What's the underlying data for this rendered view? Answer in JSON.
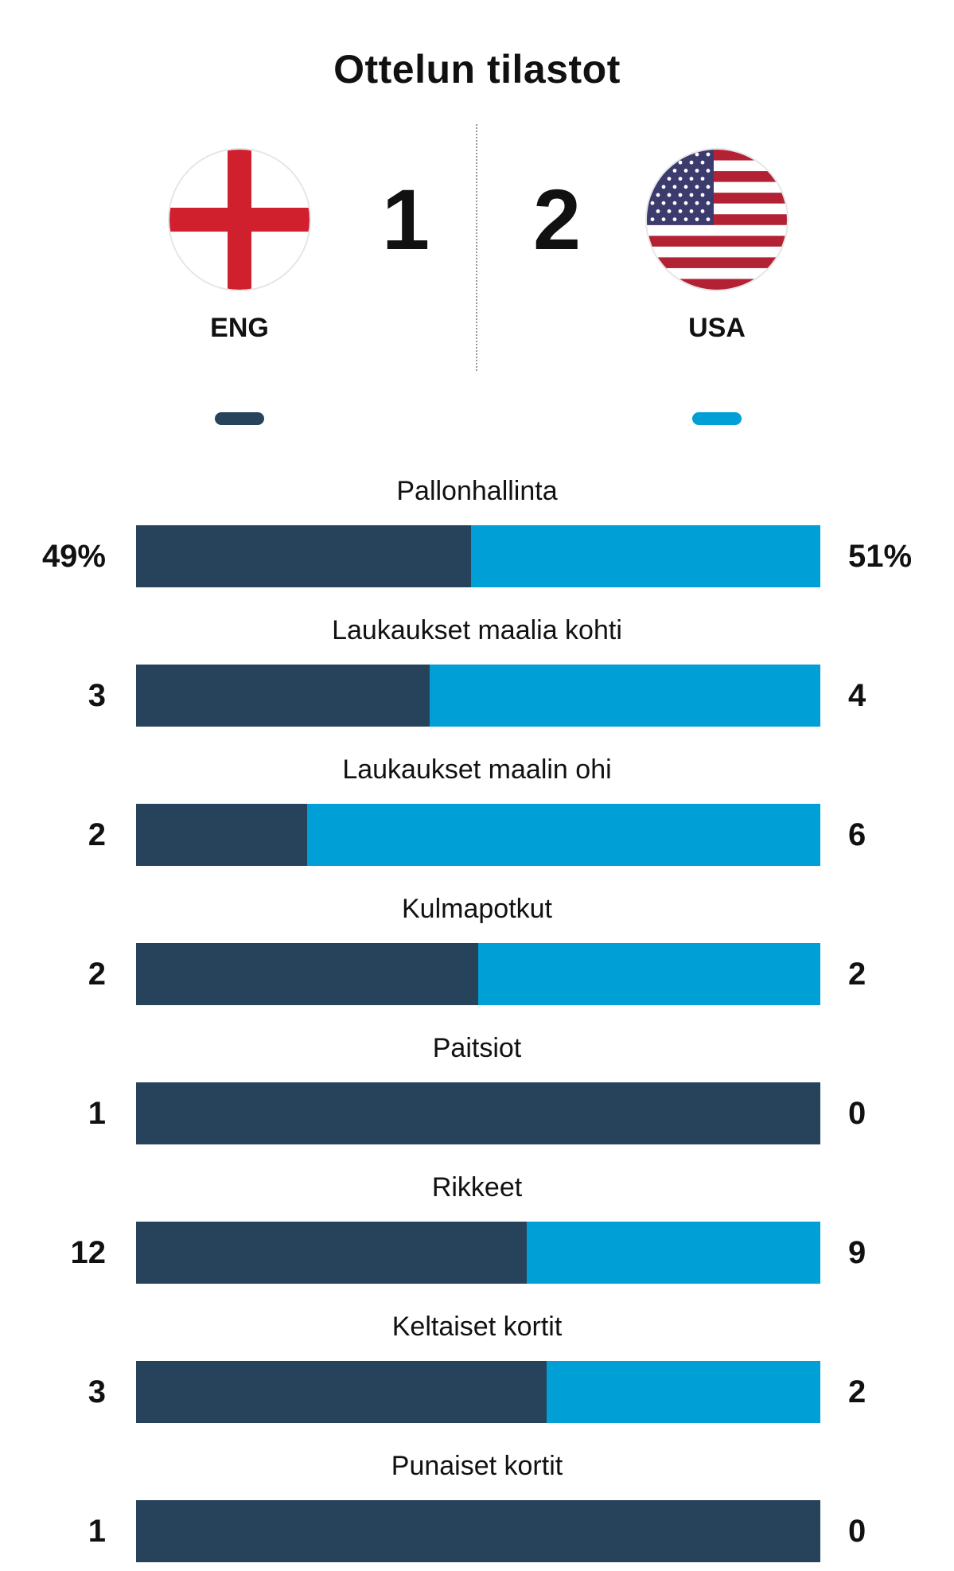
{
  "title": "Ottelun tilastot",
  "colors": {
    "home": "#27435c",
    "away": "#00a0d6"
  },
  "home": {
    "code": "ENG",
    "score": "1",
    "flag": "england-flag-icon"
  },
  "away": {
    "code": "USA",
    "score": "2",
    "flag": "usa-flag-icon"
  },
  "chart_data": {
    "type": "bar",
    "orientation": "horizontal-stacked-share",
    "categories": [
      "Pallonhallinta",
      "Laukaukset maalia kohti",
      "Laukaukset maalin ohi",
      "Kulmapotkut",
      "Paitsiot",
      "Rikkeet",
      "Keltaiset kortit",
      "Punaiset kortit"
    ],
    "labels_home": [
      "49%",
      "3",
      "2",
      "2",
      "1",
      "12",
      "3",
      "1"
    ],
    "labels_away": [
      "51%",
      "4",
      "6",
      "2",
      "0",
      "9",
      "2",
      "0"
    ],
    "series": [
      {
        "name": "ENG",
        "values": [
          49,
          3,
          2,
          2,
          1,
          12,
          3,
          1
        ]
      },
      {
        "name": "USA",
        "values": [
          51,
          4,
          6,
          2,
          0,
          9,
          2,
          0
        ]
      }
    ],
    "legend": "top"
  }
}
